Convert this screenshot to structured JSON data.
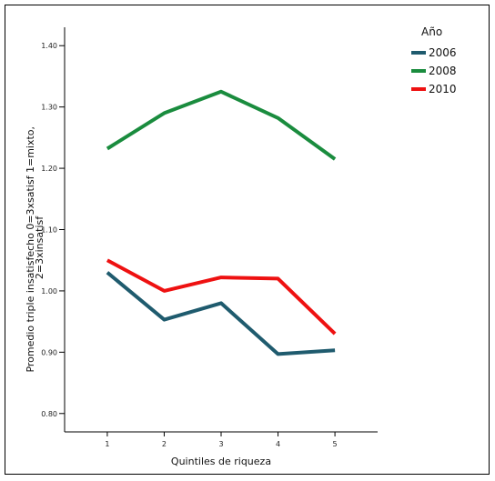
{
  "chart_data": {
    "type": "line",
    "title": "",
    "xlabel": "Quintiles de riqueza",
    "ylabel_lines": [
      "Promedio triple insatisfecho 0=3xsatisf 1=mixto,",
      "2=3xinsatisf"
    ],
    "x": [
      1,
      2,
      3,
      4,
      5
    ],
    "x_tick_labels": [
      "1",
      "2",
      "3",
      "4",
      "5"
    ],
    "xlim": [
      0.25,
      5.75
    ],
    "ylim": [
      0.77,
      1.43
    ],
    "y_ticks": [
      0.8,
      0.9,
      1.0,
      1.1,
      1.2,
      1.3,
      1.4
    ],
    "y_tick_labels": [
      "0.80",
      "0.90",
      "1.00",
      "1.10",
      "1.20",
      "1.30",
      "1.40"
    ],
    "grid": false,
    "legend": {
      "title": "Año",
      "position": "top-right"
    },
    "series": [
      {
        "name": "2006",
        "color": "#1f5b6e",
        "values": [
          1.03,
          0.953,
          0.98,
          0.897,
          0.903
        ]
      },
      {
        "name": "2008",
        "color": "#1a8c3e",
        "values": [
          1.232,
          1.29,
          1.325,
          1.282,
          1.215
        ]
      },
      {
        "name": "2010",
        "color": "#ee1111",
        "values": [
          1.05,
          1.0,
          1.022,
          1.02,
          0.93
        ]
      }
    ]
  }
}
